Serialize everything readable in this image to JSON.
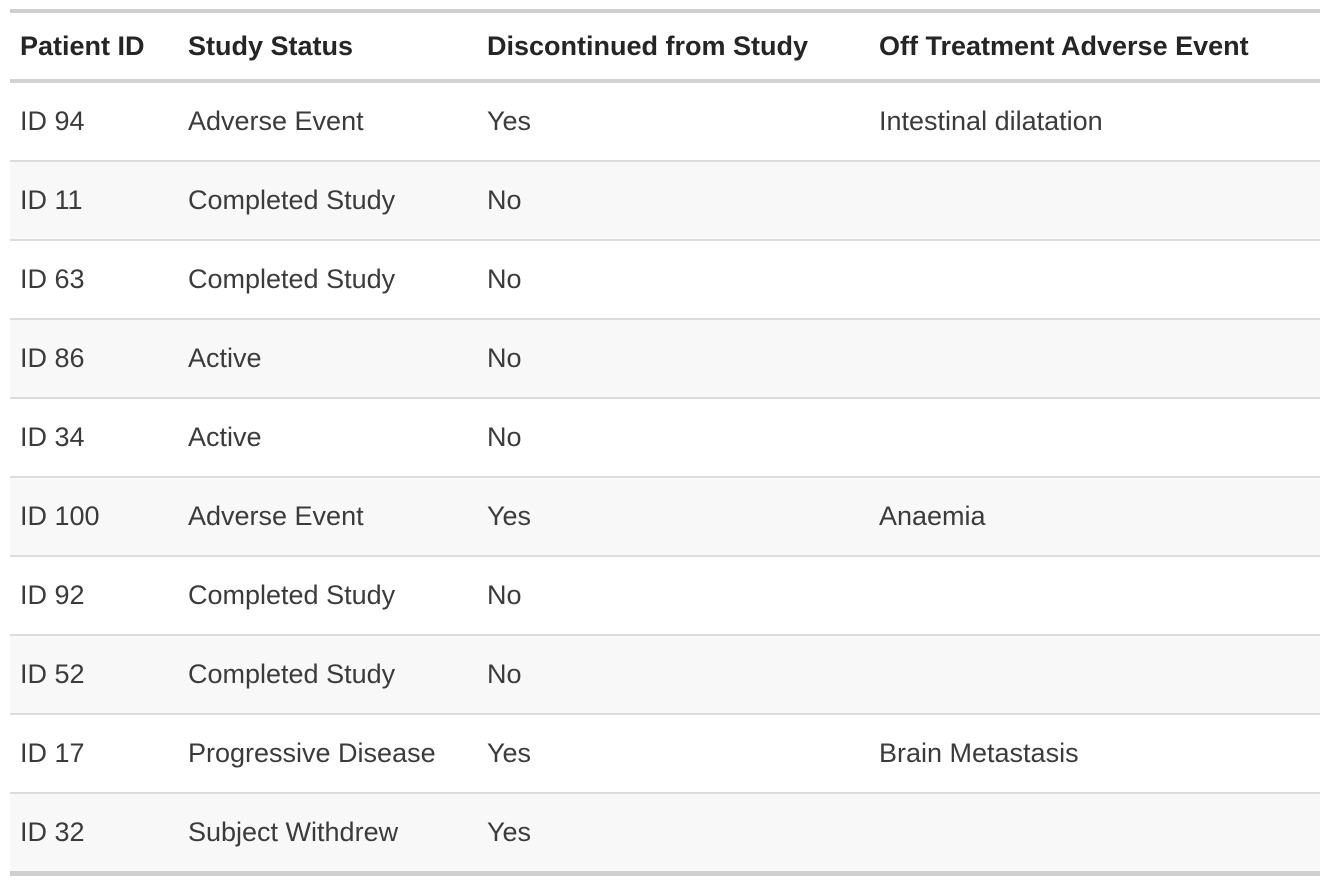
{
  "chart_data": {
    "type": "table",
    "columns": [
      "Patient ID",
      "Study Status",
      "Discontinued from Study",
      "Off Treatment Adverse Event"
    ],
    "rows": [
      [
        "ID 94",
        "Adverse Event",
        "Yes",
        "Intestinal dilatation"
      ],
      [
        "ID 11",
        "Completed Study",
        "No",
        ""
      ],
      [
        "ID 63",
        "Completed Study",
        "No",
        ""
      ],
      [
        "ID 86",
        "Active",
        "No",
        ""
      ],
      [
        "ID 34",
        "Active",
        "No",
        ""
      ],
      [
        "ID 100",
        "Adverse Event",
        "Yes",
        "Anaemia"
      ],
      [
        "ID 92",
        "Completed Study",
        "No",
        ""
      ],
      [
        "ID 52",
        "Completed Study",
        "No",
        ""
      ],
      [
        "ID 17",
        "Progressive Disease",
        "Yes",
        "Brain Metastasis"
      ],
      [
        "ID 32",
        "Subject Withdrew",
        "Yes",
        ""
      ]
    ]
  },
  "colors": {
    "stripe_row_background": "#f8f8f8",
    "row_separator": "#dcdcdc",
    "outer_rule": "#cfcfcf",
    "header_rule": "#d2d2d2",
    "header_text": "#252525",
    "body_text": "#3b3b3b"
  }
}
